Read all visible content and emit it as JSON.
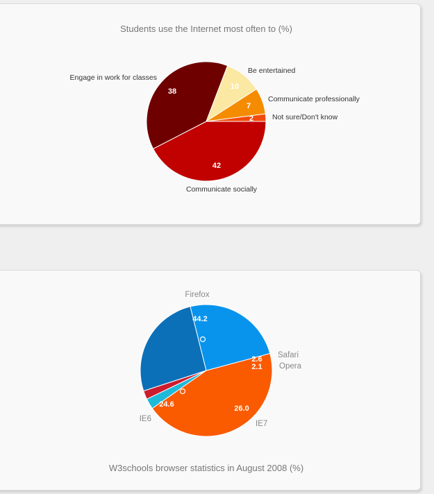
{
  "chart_data": [
    {
      "type": "pie",
      "title": "Students use the Internet most often to (%)",
      "slices": [
        {
          "label": "Communicate socially",
          "value": 42,
          "data_label": "42",
          "color": "#c10000"
        },
        {
          "label": "Engage in work for classes",
          "value": 38,
          "data_label": "38",
          "color": "#6e0000"
        },
        {
          "label": "Be entertained",
          "value": 10,
          "data_label": "10",
          "color": "#fbe8a3"
        },
        {
          "label": "Communicate professionally",
          "value": 7,
          "data_label": "7",
          "color": "#f58c00"
        },
        {
          "label": "Not sure/Don't know",
          "value": 2,
          "data_label": "2",
          "color": "#f24b0c"
        }
      ]
    },
    {
      "type": "pie",
      "title": "W3schools browser statistics in August 2008 (%)",
      "slices": [
        {
          "label": "Firefox",
          "value": 44.2,
          "data_label": "44.2",
          "color": "#fa5a00"
        },
        {
          "label": "Safari",
          "value": 2.6,
          "data_label": "2.6",
          "color": "#1fb9d9"
        },
        {
          "label": "Opera",
          "value": 2.1,
          "data_label": "2.1",
          "color": "#cc1b2e"
        },
        {
          "label": "IE7",
          "value": 26.0,
          "data_label": "26.0",
          "color": "#0b70b8"
        },
        {
          "label": "IE6",
          "value": 24.6,
          "data_label": "24.6",
          "color": "#0894ec"
        }
      ]
    }
  ]
}
